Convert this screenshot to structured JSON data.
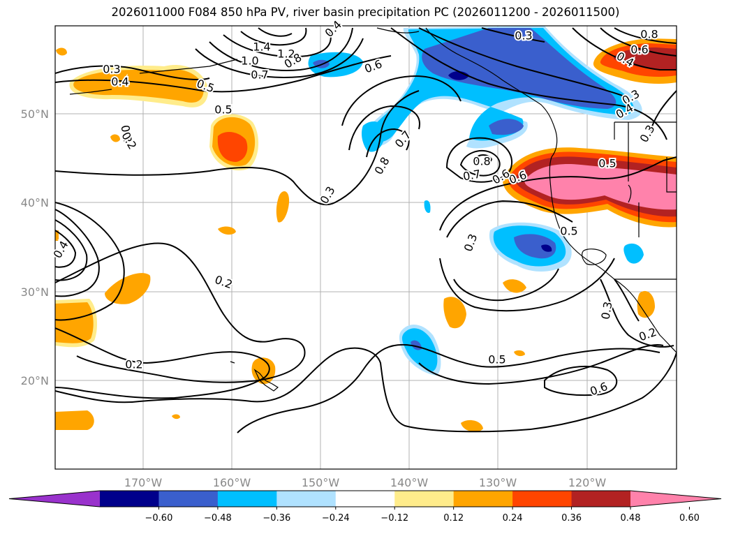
{
  "title": "2026011000 F084 850 hPa PV, river basin precipitation PC (2026011200 - 2026011500)",
  "map": {
    "lat_labels": [
      "50°N",
      "40°N",
      "30°N",
      "20°N"
    ],
    "lon_labels": [
      "170°W",
      "160°W",
      "150°W",
      "140°W",
      "130°W",
      "120°W"
    ]
  },
  "contour_labels": [
    "0.3",
    "0.5",
    "0.2",
    "0.6",
    "0.5",
    "0.4",
    "0.3",
    "0.4",
    "1.4",
    "1.2",
    "1.0",
    "0.8",
    "0.7",
    "0.4",
    "0.2",
    "0.2",
    "0.6",
    "0.7",
    "0.8",
    "0.3",
    "0.8",
    "0.7",
    "0.6",
    "0.5",
    "0.3",
    "0.5",
    "0.6",
    "0.2",
    "0.3",
    "0.3",
    "0.4",
    "0.8",
    "0.6",
    "0.4",
    "0.3",
    "0.5",
    "0.2"
  ],
  "colorbar": {
    "colors": [
      "#9932cc",
      "#00008b",
      "#3a5fcd",
      "#00bfff",
      "#b0e2ff",
      "#ffffff",
      "#ffec8b",
      "#ffa500",
      "#ff4500",
      "#b22222",
      "#ff82ab"
    ],
    "ticks": [
      "−0.60",
      "−0.48",
      "−0.36",
      "−0.24",
      "−0.12",
      "0.12",
      "0.24",
      "0.36",
      "0.48",
      "0.60"
    ]
  }
}
